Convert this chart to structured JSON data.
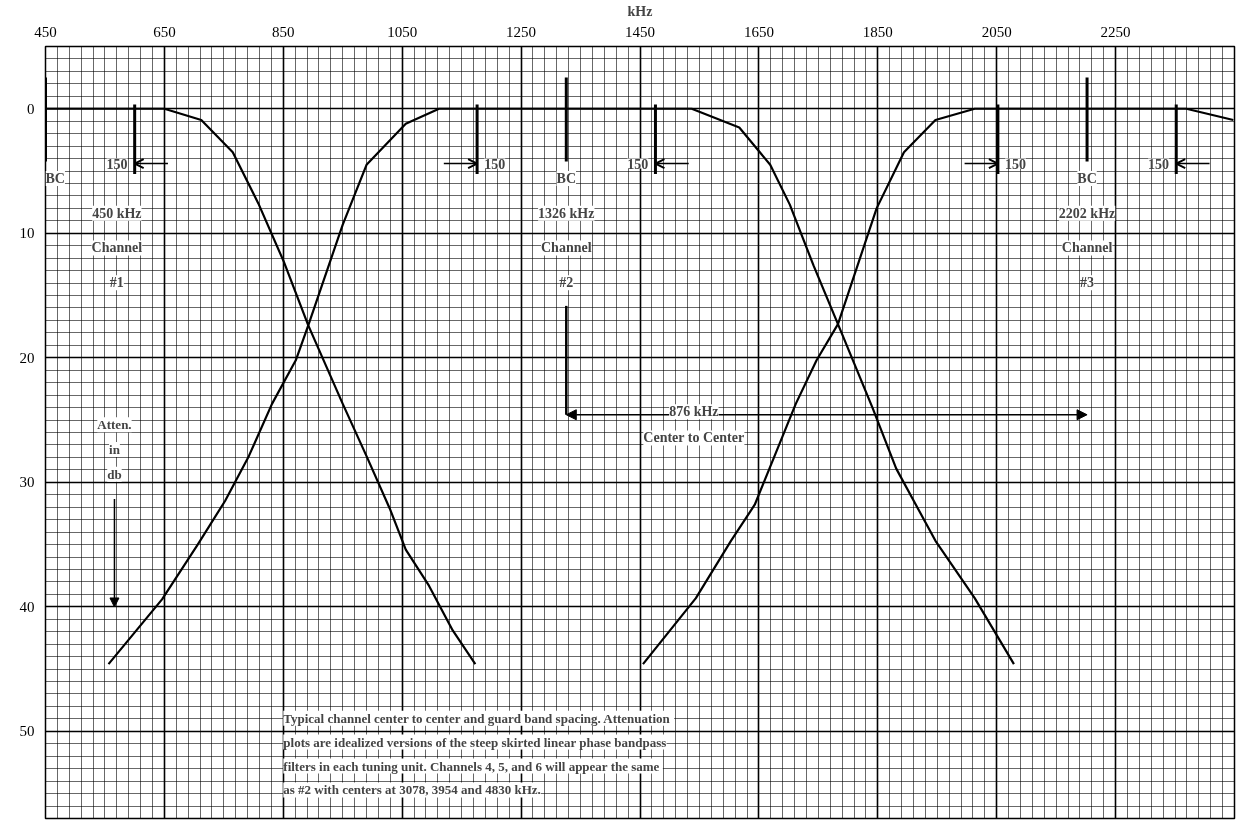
{
  "chart_data": {
    "type": "line",
    "xlabel": "kHz",
    "ylabel": "Atten. in db",
    "xlim": [
      450,
      2450
    ],
    "ylim": [
      57,
      -5
    ],
    "xticks": [
      450,
      650,
      850,
      1050,
      1250,
      1450,
      1650,
      1850,
      2050,
      2250
    ],
    "yticks": [
      0,
      10,
      20,
      30,
      40,
      50
    ],
    "grid": true,
    "series": [
      {
        "color": "#000000",
        "x": [
          450,
          650,
          712,
          765,
          808,
          851,
          892,
          950,
          990,
          1029,
          1056,
          1095,
          1135,
          1173
        ],
        "values": [
          0,
          0,
          0.9,
          3.5,
          7.6,
          12.3,
          17.4,
          23.7,
          27.9,
          32.1,
          35.4,
          38.3,
          41.9,
          44.6
        ]
      },
      {
        "color": "#000000",
        "x": [
          556,
          646,
          706,
          752,
          792,
          831,
          871,
          892,
          950,
          990,
          1056,
          1112,
          1537,
          1617,
          1669,
          1702,
          1742,
          1783,
          1841,
          1881,
          1947,
          2013,
          2079
        ],
        "values": [
          44.6,
          39.4,
          35.0,
          31.5,
          27.9,
          23.7,
          20.2,
          17.4,
          9.3,
          4.5,
          1.2,
          0,
          0,
          1.5,
          4.5,
          7.7,
          12.6,
          17.3,
          24,
          28.9,
          34.7,
          39.3,
          44.6
        ]
      },
      {
        "color": "#000000",
        "x": [
          1455,
          1544,
          1603,
          1643,
          1712,
          1747,
          1783,
          1848,
          1894,
          1947,
          2013,
          2369,
          2448
        ],
        "values": [
          44.6,
          39.3,
          34.7,
          31.8,
          23.7,
          20.2,
          17.3,
          8,
          3.5,
          0.9,
          0,
          0,
          0.9
        ]
      }
    ],
    "ref_lines": [
      {
        "axis": "x",
        "value": 450,
        "label": "BC\n450 kHz\nChannel\n#1"
      },
      {
        "axis": "x",
        "value": 1326,
        "label": "BC\n1326 kHz\nChannel\n#2"
      },
      {
        "axis": "x",
        "value": 2202,
        "label": "BC\n2202 kHz\nChannel\n#3"
      },
      {
        "axis": "x",
        "value": 600
      },
      {
        "axis": "x",
        "value": 1176
      },
      {
        "axis": "x",
        "value": 1476
      },
      {
        "axis": "x",
        "value": 2052
      },
      {
        "axis": "x",
        "value": 2352
      }
    ],
    "annotations": [
      {
        "text": "150",
        "x": 600,
        "y": 4.4
      },
      {
        "text": "150",
        "x": 1176,
        "y": 4.4
      },
      {
        "text": "150",
        "x": 1476,
        "y": 4.4
      },
      {
        "text": "150",
        "x": 2052,
        "y": 4.4
      },
      {
        "text": "150",
        "x": 2352,
        "y": 4.4
      },
      "876 kHz",
      "Center to Center",
      "Typical channel center to center and guard band spacing.  Attenuation plots are idealized versions of the steep skirted linear phase bandpass filters in each tuning unit.  Channels 4, 5, and 6 will appear the same as #2 with centers at 3078, 3954 and 4830 kHz."
    ]
  }
}
